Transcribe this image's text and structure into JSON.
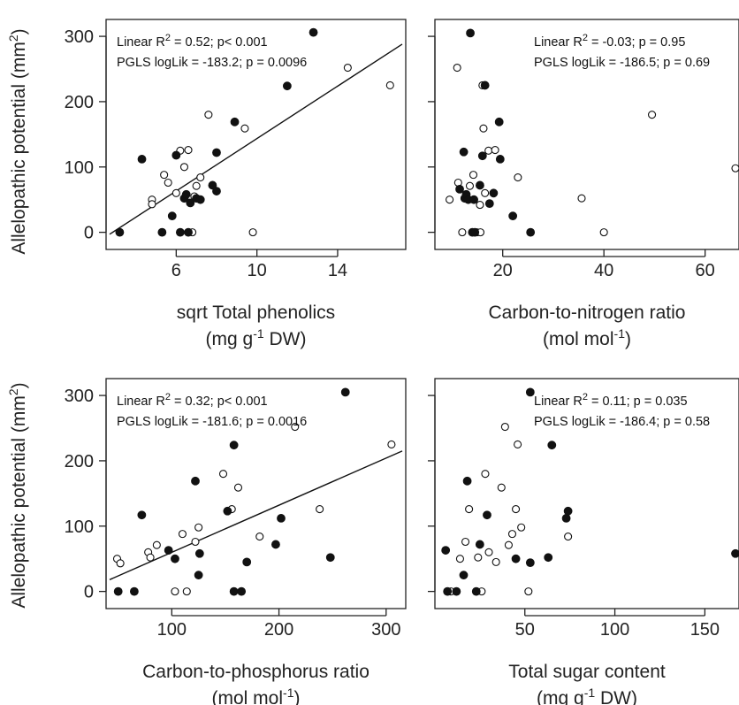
{
  "y_axis_label": {
    "text": "Allelopathic potential (mm",
    "sup": "2",
    "close": ")"
  },
  "chart_data": [
    {
      "type": "scatter",
      "id": "p1",
      "xlabel": {
        "line1": "sqrt Total phenolics",
        "line2_pre": "(mg g",
        "line2_sup": "-1",
        "line2_post": " DW)"
      },
      "ylabel": "Allelopathic potential (mm2)",
      "xlim": [
        2.7,
        17.2
      ],
      "ylim": [
        -10,
        315
      ],
      "xticks": [
        6,
        10,
        14
      ],
      "yticks": [
        0,
        100,
        200,
        300
      ],
      "annotations": [
        {
          "pre": "Linear R",
          "sup": "2",
          "post": " = 0.52; p< 0.001"
        },
        {
          "pre": "PGLS logLik = -183.2; p = 0.0096",
          "sup": "",
          "post": ""
        }
      ],
      "fit_line": {
        "x": [
          2.7,
          17.2
        ],
        "y": [
          -3,
          288
        ]
      },
      "filled": [
        [
          3.2,
          0
        ],
        [
          4.3,
          112
        ],
        [
          5.3,
          0
        ],
        [
          5.8,
          25
        ],
        [
          6.0,
          118
        ],
        [
          6.2,
          0
        ],
        [
          6.4,
          52
        ],
        [
          6.5,
          58
        ],
        [
          6.6,
          0
        ],
        [
          6.7,
          45
        ],
        [
          7.0,
          52
        ],
        [
          7.2,
          50
        ],
        [
          7.8,
          72
        ],
        [
          8.0,
          122
        ],
        [
          8.0,
          63
        ],
        [
          8.9,
          169
        ],
        [
          11.5,
          224
        ],
        [
          12.8,
          306
        ]
      ],
      "open": [
        [
          4.8,
          50
        ],
        [
          4.8,
          43
        ],
        [
          5.4,
          88
        ],
        [
          5.6,
          76
        ],
        [
          6.0,
          60
        ],
        [
          6.2,
          125
        ],
        [
          6.4,
          100
        ],
        [
          6.6,
          126
        ],
        [
          6.8,
          0
        ],
        [
          6.9,
          55
        ],
        [
          7.0,
          71
        ],
        [
          7.2,
          84
        ],
        [
          7.6,
          180
        ],
        [
          9.4,
          159
        ],
        [
          9.8,
          0
        ],
        [
          14.5,
          252
        ],
        [
          16.6,
          225
        ]
      ]
    },
    {
      "type": "scatter",
      "id": "p2",
      "xlabel": {
        "line1": "Carbon-to-nitrogen ratio",
        "line2_pre": "(mol mol",
        "line2_sup": "-1",
        "line2_post": ")"
      },
      "ylabel": "",
      "xlim": [
        7.3,
        66
      ],
      "ylim": [
        -10,
        315
      ],
      "xticks": [
        20,
        40,
        60
      ],
      "yticks": [
        0,
        100,
        200,
        300
      ],
      "annotations": [
        {
          "pre": "Linear R",
          "sup": "2",
          "post": " = -0.03; p = 0.95"
        },
        {
          "pre": "PGLS logLik = -186.5; p = 0.69",
          "sup": "",
          "post": ""
        }
      ],
      "fit_line": null,
      "filled": [
        [
          11.5,
          66
        ],
        [
          12.3,
          123
        ],
        [
          12.5,
          52
        ],
        [
          12.8,
          58
        ],
        [
          13.2,
          50
        ],
        [
          13.6,
          305
        ],
        [
          14.0,
          0
        ],
        [
          14.3,
          50
        ],
        [
          14.5,
          0
        ],
        [
          15.5,
          72
        ],
        [
          16.0,
          117
        ],
        [
          16.5,
          225
        ],
        [
          17.4,
          44
        ],
        [
          18.2,
          60
        ],
        [
          19.3,
          169
        ],
        [
          19.5,
          112
        ],
        [
          22.0,
          25
        ],
        [
          25.5,
          0
        ]
      ],
      "open": [
        [
          9.5,
          50
        ],
        [
          11.0,
          252
        ],
        [
          11.2,
          76
        ],
        [
          12.0,
          0
        ],
        [
          13.5,
          71
        ],
        [
          14.2,
          88
        ],
        [
          14.9,
          0
        ],
        [
          15.5,
          42
        ],
        [
          15.6,
          0
        ],
        [
          16.0,
          225
        ],
        [
          16.2,
          159
        ],
        [
          16.5,
          60
        ],
        [
          17.2,
          125
        ],
        [
          18.5,
          126
        ],
        [
          23.0,
          84
        ],
        [
          35.6,
          52
        ],
        [
          40.0,
          0
        ],
        [
          49.5,
          180
        ],
        [
          66.0,
          98
        ]
      ]
    },
    {
      "type": "scatter",
      "id": "p3",
      "xlabel": {
        "line1": "Carbon-to-phosphorus ratio",
        "line2_pre": "(mol mol",
        "line2_sup": "-1",
        "line2_post": ")"
      },
      "ylabel": "Allelopathic potential (mm2)",
      "xlim": [
        42,
        315
      ],
      "ylim": [
        -10,
        315
      ],
      "xticks": [
        100,
        200,
        300
      ],
      "yticks": [
        0,
        100,
        200,
        300
      ],
      "annotations": [
        {
          "pre": "Linear R",
          "sup": "2",
          "post": " = 0.32; p< 0.001"
        },
        {
          "pre": "PGLS logLik = -181.6; p = 0.0016",
          "sup": "",
          "post": ""
        }
      ],
      "fit_line": {
        "x": [
          42,
          315
        ],
        "y": [
          18,
          215
        ]
      },
      "filled": [
        [
          50,
          0
        ],
        [
          65,
          0
        ],
        [
          72,
          117
        ],
        [
          97,
          63
        ],
        [
          103,
          50
        ],
        [
          122,
          169
        ],
        [
          125,
          25
        ],
        [
          126,
          58
        ],
        [
          152,
          123
        ],
        [
          158,
          224
        ],
        [
          158,
          0
        ],
        [
          165,
          0
        ],
        [
          170,
          45
        ],
        [
          197,
          72
        ],
        [
          202,
          112
        ],
        [
          248,
          52
        ],
        [
          262,
          305
        ]
      ],
      "open": [
        [
          49,
          50
        ],
        [
          52,
          43
        ],
        [
          78,
          60
        ],
        [
          80,
          52
        ],
        [
          86,
          71
        ],
        [
          103,
          0
        ],
        [
          110,
          88
        ],
        [
          114,
          0
        ],
        [
          122,
          76
        ],
        [
          125,
          98
        ],
        [
          148,
          180
        ],
        [
          156,
          126
        ],
        [
          162,
          159
        ],
        [
          182,
          84
        ],
        [
          215,
          252
        ],
        [
          238,
          126
        ],
        [
          305,
          225
        ]
      ]
    },
    {
      "type": "scatter",
      "id": "p4",
      "xlabel": {
        "line1": "Total sugar content",
        "line2_pre": "(mg g",
        "line2_sup": "-1",
        "line2_post": " DW)"
      },
      "ylabel": "",
      "xlim": [
        2,
        167
      ],
      "ylim": [
        -10,
        315
      ],
      "xticks": [
        50,
        100,
        150
      ],
      "yticks": [
        0,
        100,
        200,
        300
      ],
      "annotations": [
        {
          "pre": "Linear R",
          "sup": "2",
          "post": " = 0.11; p = 0.035"
        },
        {
          "pre": "PGLS logLik = -186.4; p = 0.58",
          "sup": "",
          "post": ""
        }
      ],
      "fit_line": null,
      "filled": [
        [
          6,
          63
        ],
        [
          7,
          0
        ],
        [
          12,
          0
        ],
        [
          16,
          25
        ],
        [
          18,
          169
        ],
        [
          23,
          0
        ],
        [
          25,
          72
        ],
        [
          29,
          117
        ],
        [
          45,
          50
        ],
        [
          53,
          305
        ],
        [
          53,
          44
        ],
        [
          63,
          52
        ],
        [
          65,
          224
        ],
        [
          73,
          112
        ],
        [
          74,
          123
        ],
        [
          167,
          58
        ]
      ],
      "open": [
        [
          9,
          0
        ],
        [
          14,
          50
        ],
        [
          17,
          76
        ],
        [
          19,
          126
        ],
        [
          24,
          52
        ],
        [
          26,
          0
        ],
        [
          28,
          180
        ],
        [
          30,
          60
        ],
        [
          34,
          45
        ],
        [
          37,
          159
        ],
        [
          39,
          252
        ],
        [
          41,
          71
        ],
        [
          43,
          88
        ],
        [
          45,
          126
        ],
        [
          46,
          225
        ],
        [
          48,
          98
        ],
        [
          52,
          0
        ],
        [
          74,
          84
        ]
      ]
    }
  ]
}
